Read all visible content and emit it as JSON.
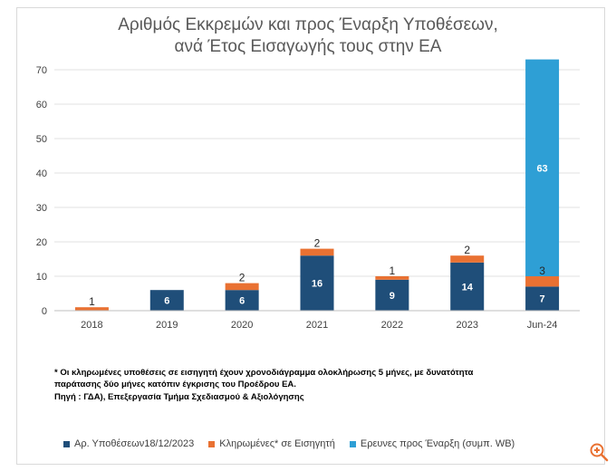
{
  "chart_data": {
    "type": "bar",
    "stacked": true,
    "title_line1": "Αριθμός Εκκρεμών και  προς Έναρξη Υποθέσεων,",
    "title_line2": "ανά Έτος Εισαγωγής τους στην ΕΑ",
    "categories": [
      "2018",
      "2019",
      "2020",
      "2021",
      "2022",
      "2023",
      "Jun-24"
    ],
    "ylim": [
      0,
      70
    ],
    "yticks": [
      0,
      10,
      20,
      30,
      40,
      50,
      60,
      70
    ],
    "grid": true,
    "legend_position": "bottom",
    "series": [
      {
        "name": "Αρ. Υποθέσεων18/12/2023",
        "color": "#1f4e79",
        "values": [
          0,
          6,
          6,
          16,
          9,
          14,
          7
        ]
      },
      {
        "name": "Κληρωμένες* σε Εισηγητή",
        "color": "#e97132",
        "values": [
          1,
          0,
          2,
          2,
          1,
          2,
          3
        ]
      },
      {
        "name": "Ερευνες προς Έναρξη (συμπ. WB)",
        "color": "#2e9fd5",
        "values": [
          0,
          0,
          0,
          0,
          0,
          0,
          63
        ]
      }
    ]
  },
  "notes": {
    "line1": "* Οι κληρωμένες υποθέσεις σε εισηγητή έχουν χρονοδιάγραμμα ολοκλήρωσης 5  μήνες, με δυνατότητα",
    "line2": "παράτασης δύο μήνες κατόπιν έγκρισης του Προέδρου ΕΑ.",
    "line3": "Πηγή : ΓΔΑ), Επεξεργασία Τμήμα Σχεδιασμού & Αξιολόγησης"
  },
  "icons": {
    "zoom": "zoom-in-icon"
  }
}
